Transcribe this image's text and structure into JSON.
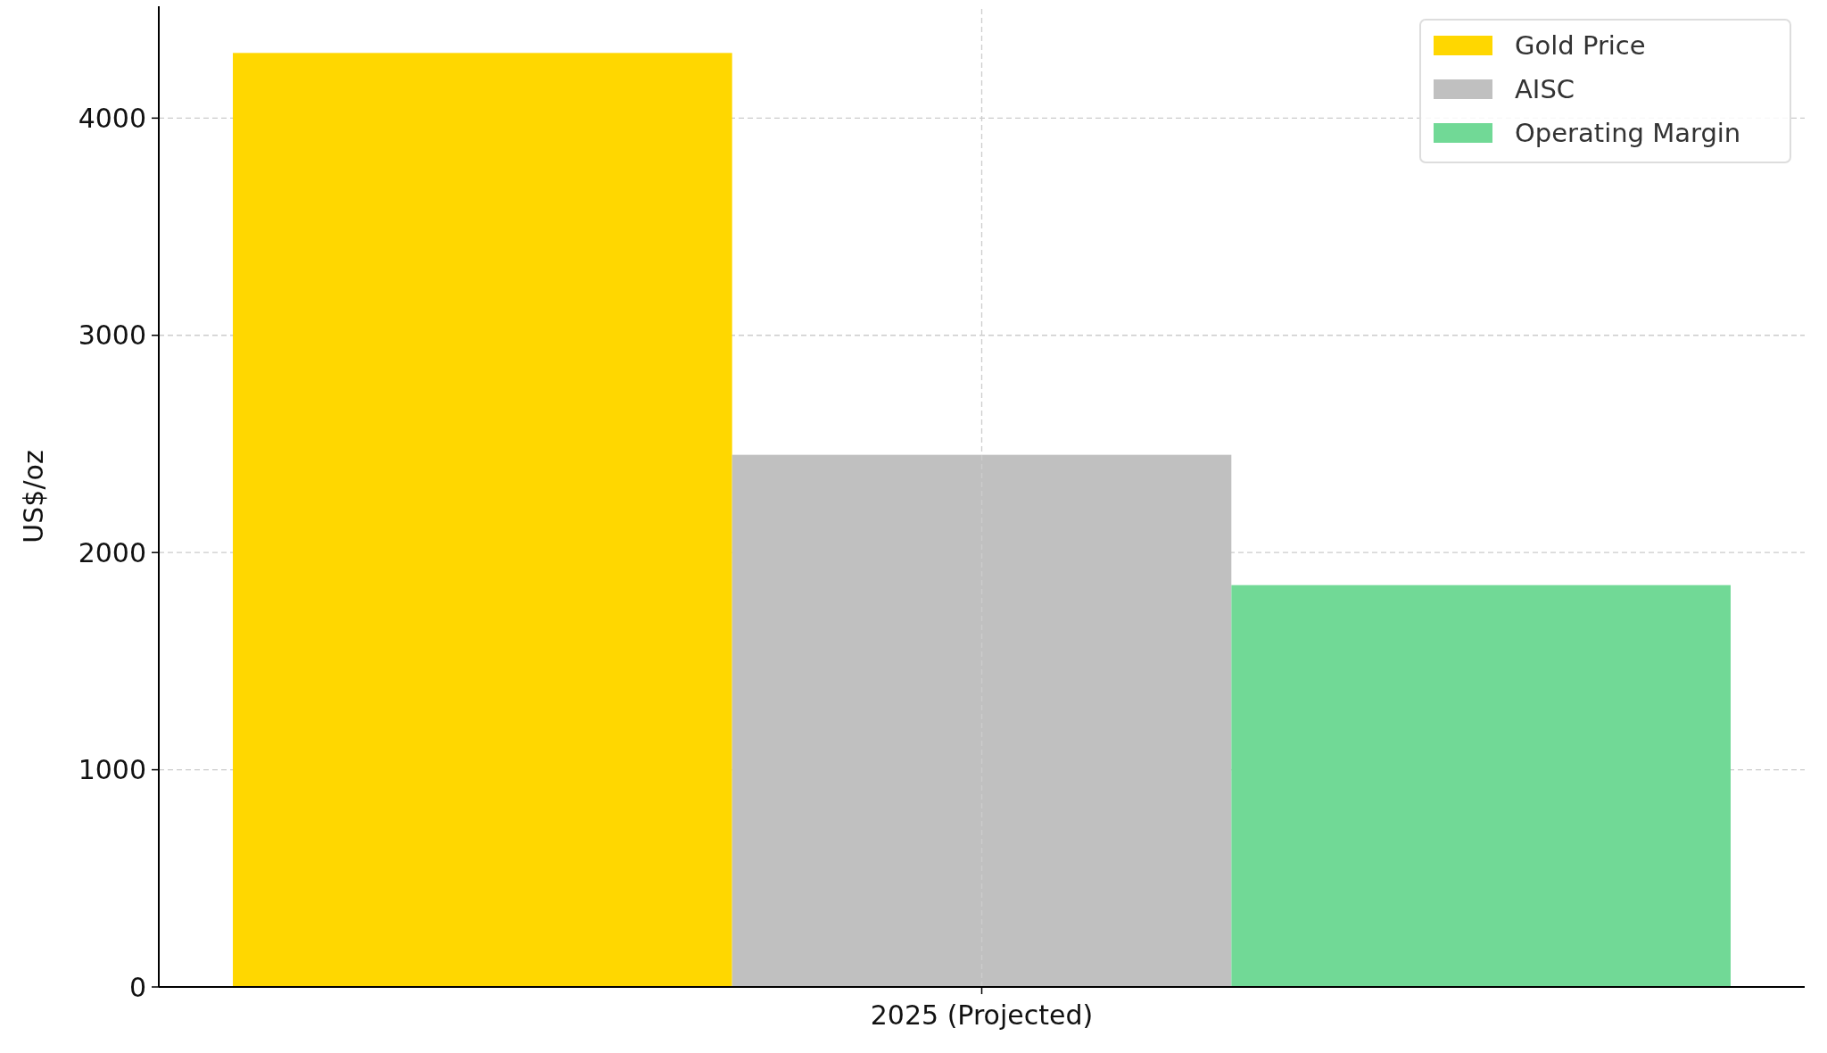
{
  "chart_data": {
    "type": "bar",
    "ylabel": "US$/oz",
    "categories": [
      "2025 (Projected)"
    ],
    "series": [
      {
        "name": "Gold Price",
        "color": "#ffd700",
        "values": [
          4300
        ]
      },
      {
        "name": "AISC",
        "color": "#c0c0c0",
        "values": [
          2450
        ]
      },
      {
        "name": "Operating Margin",
        "color": "#71d996",
        "values": [
          1850
        ]
      }
    ],
    "ylim": [
      0,
      4515
    ],
    "yticks": [
      0,
      1000,
      2000,
      3000,
      4000
    ],
    "grid": true,
    "legend": "top right"
  }
}
